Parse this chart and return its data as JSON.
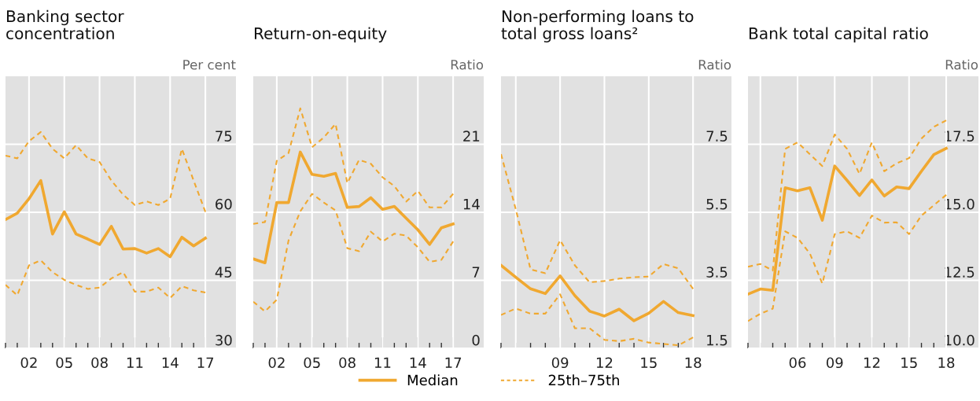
{
  "chart_data": [
    {
      "type": "line",
      "title": "Banking sector\nconcentration",
      "ylabel": "Per cent",
      "categories": [
        null,
        null,
        "02",
        null,
        null,
        "05",
        null,
        null,
        "08",
        null,
        null,
        "11",
        null,
        null,
        "14",
        null,
        null,
        "17"
      ],
      "series": [
        {
          "name": "Median",
          "color": "#f0a830",
          "line_style": "solid",
          "values": [
            58.4,
            59.8,
            63.0,
            67.0,
            55.2,
            60.1,
            55.2,
            54.1,
            52.9,
            56.9,
            51.9,
            52.0,
            51.0,
            52.0,
            50.2,
            54.5,
            52.6,
            54.3
          ]
        },
        {
          "name": "25th–75th",
          "color": "#f0a830",
          "line_style": "dashed",
          "values": [
            72.5,
            71.9,
            75.7,
            77.7,
            74.0,
            71.9,
            74.8,
            71.9,
            71.1,
            67.0,
            63.9,
            61.6,
            62.4,
            61.6,
            63.0,
            74.0,
            67.0,
            60.1
          ]
        },
        {
          "color": "#f0a830",
          "line_style": "dashed",
          "values": [
            44.0,
            41.7,
            48.3,
            49.4,
            46.8,
            45.1,
            44.0,
            43.1,
            43.4,
            45.4,
            46.8,
            42.5,
            42.5,
            43.4,
            41.1,
            43.7,
            42.8,
            42.3
          ]
        }
      ],
      "ylim": [
        30,
        90
      ],
      "yticks": [
        30,
        45,
        60,
        75
      ],
      "grid": true,
      "legend": "bottom"
    },
    {
      "type": "line",
      "title": "Return-on-equity",
      "ylabel": "Ratio",
      "categories": [
        null,
        null,
        "02",
        null,
        null,
        "05",
        null,
        null,
        "08",
        null,
        null,
        "11",
        null,
        null,
        "14",
        null,
        null,
        "17"
      ],
      "series": [
        {
          "name": "Median",
          "color": "#f0a830",
          "line_style": "solid",
          "values": [
            9.2,
            8.8,
            15.0,
            15.0,
            20.2,
            17.9,
            17.7,
            18.0,
            14.5,
            14.6,
            15.5,
            14.3,
            14.6,
            13.4,
            12.2,
            10.7,
            12.4,
            12.8
          ]
        },
        {
          "name": "25th–75th",
          "color": "#f0a830",
          "line_style": "dashed",
          "values": [
            12.8,
            13.0,
            19.3,
            20.1,
            24.7,
            20.7,
            21.7,
            23.1,
            17.0,
            19.4,
            19.0,
            17.6,
            16.7,
            15.1,
            16.2,
            14.5,
            14.5,
            15.9
          ]
        },
        {
          "color": "#f0a830",
          "line_style": "dashed",
          "values": [
            4.8,
            3.8,
            5.0,
            11.1,
            14.1,
            15.9,
            15.0,
            14.2,
            10.3,
            10.0,
            12.0,
            11.0,
            11.8,
            11.6,
            10.4,
            8.9,
            9.1,
            11.0
          ]
        }
      ],
      "ylim": [
        0,
        28
      ],
      "yticks": [
        0,
        7,
        14,
        21
      ],
      "grid": true,
      "legend": "bottom"
    },
    {
      "type": "line",
      "title": "Non-performing loans to\ntotal gross loans²",
      "ylabel": "Ratio",
      "categories": [
        null,
        null,
        null,
        null,
        "09",
        null,
        null,
        "12",
        null,
        null,
        "15",
        null,
        null,
        "18"
      ],
      "series": [
        {
          "name": "Median",
          "color": "#f0a830",
          "line_style": "solid",
          "values": [
            3.94,
            3.59,
            3.25,
            3.11,
            3.63,
            3.05,
            2.59,
            2.45,
            2.65,
            2.31,
            2.53,
            2.88,
            2.55,
            2.46
          ]
        },
        {
          "name": "25th–75th",
          "color": "#f0a830",
          "line_style": "dashed",
          "values": [
            7.21,
            5.59,
            3.82,
            3.71,
            4.68,
            3.94,
            3.44,
            3.48,
            3.55,
            3.59,
            3.61,
            3.98,
            3.85,
            3.25
          ]
        },
        {
          "color": "#f0a830",
          "line_style": "dashed",
          "values": [
            2.48,
            2.67,
            2.52,
            2.52,
            3.09,
            2.09,
            2.09,
            1.75,
            1.71,
            1.78,
            1.67,
            1.63,
            1.59,
            1.82
          ]
        }
      ],
      "ylim": [
        1.5,
        9.5
      ],
      "yticks": [
        1.5,
        3.5,
        5.5,
        7.5
      ],
      "grid": true,
      "legend": "bottom"
    },
    {
      "type": "line",
      "title": "Bank total capital ratio",
      "ylabel": "Ratio",
      "categories": [
        null,
        null,
        null,
        null,
        "06",
        null,
        null,
        "09",
        null,
        null,
        "12",
        null,
        null,
        "15",
        null,
        null,
        "18"
      ],
      "series": [
        {
          "name": "Median",
          "color": "#f0a830",
          "line_style": "solid",
          "values": [
            11.99,
            12.18,
            12.13,
            15.9,
            15.79,
            15.9,
            14.71,
            16.7,
            16.17,
            15.62,
            16.19,
            15.6,
            15.93,
            15.87,
            16.51,
            17.12,
            17.35
          ]
        },
        {
          "name": "25th–75th",
          "color": "#f0a830",
          "line_style": "dashed",
          "values": [
            13.0,
            13.1,
            12.86,
            17.33,
            17.57,
            17.13,
            16.7,
            17.86,
            17.33,
            16.41,
            17.57,
            16.51,
            16.8,
            16.99,
            17.71,
            18.14,
            18.38
          ]
        },
        {
          "color": "#f0a830",
          "line_style": "dashed",
          "values": [
            11.0,
            11.27,
            11.46,
            14.3,
            14.06,
            13.48,
            12.38,
            14.2,
            14.3,
            14.06,
            14.88,
            14.62,
            14.63,
            14.2,
            14.88,
            15.26,
            15.64
          ]
        }
      ],
      "ylim": [
        10,
        20
      ],
      "yticks": [
        {
          "value": 10,
          "label": "10.0"
        },
        {
          "value": 12.5,
          "label": "12.5"
        },
        {
          "value": 15,
          "label": "15.0"
        },
        {
          "value": 17.5,
          "label": "17.5"
        }
      ],
      "grid": true,
      "legend": "bottom"
    }
  ]
}
